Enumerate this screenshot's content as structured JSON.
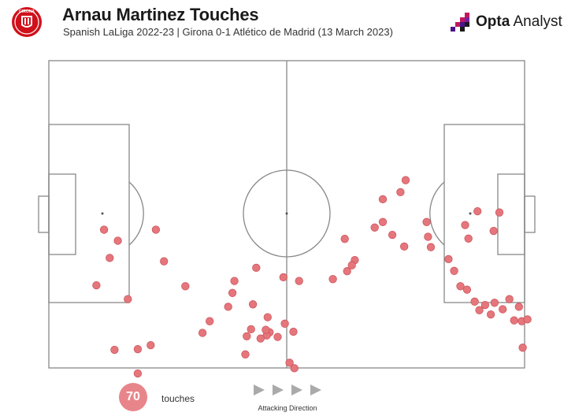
{
  "header": {
    "title": "Arnau Martinez Touches",
    "subtitle": "Spanish LaLiga 2022-23 | Girona 0-1 Atlético de Madrid (13 March 2023)",
    "crest_text": "GIRONA",
    "brand_bold": "Opta",
    "brand_regular": " Analyst"
  },
  "footer": {
    "count": "70",
    "count_label": "touches",
    "direction_label": "Attacking Direction"
  },
  "colors": {
    "touch": "#e5767c",
    "touch_stroke": "#c95258",
    "pitch_line": "#888888",
    "crest": "#d0101a",
    "brand_accent": "#c2185b"
  },
  "chart_data": {
    "type": "scatter",
    "xlim": [
      0,
      100
    ],
    "ylim": [
      0,
      100
    ],
    "points": [
      [
        11.6,
        55.0
      ],
      [
        22.5,
        55.0
      ],
      [
        14.5,
        58.6
      ],
      [
        12.8,
        64.2
      ],
      [
        24.2,
        65.3
      ],
      [
        10.0,
        73.1
      ],
      [
        16.6,
        77.6
      ],
      [
        28.7,
        73.4
      ],
      [
        42.9,
        79.3
      ],
      [
        49.3,
        70.5
      ],
      [
        51.4,
        88.2
      ],
      [
        59.7,
        71.1
      ],
      [
        64.3,
        64.9
      ],
      [
        74.7,
        60.5
      ],
      [
        72.2,
        56.7
      ],
      [
        70.2,
        52.5
      ],
      [
        62.7,
        68.5
      ],
      [
        52.6,
        71.7
      ],
      [
        43.6,
        67.4
      ],
      [
        39.0,
        71.7
      ],
      [
        38.6,
        75.6
      ],
      [
        37.7,
        80.1
      ],
      [
        33.8,
        84.8
      ],
      [
        32.3,
        88.6
      ],
      [
        21.4,
        92.6
      ],
      [
        18.7,
        93.9
      ],
      [
        18.7,
        101.8
      ],
      [
        13.8,
        94.1
      ],
      [
        50.6,
        98.3
      ],
      [
        49.6,
        85.6
      ],
      [
        48.1,
        89.9
      ],
      [
        46.4,
        88.4
      ],
      [
        45.8,
        89.4
      ],
      [
        45.6,
        87.6
      ],
      [
        46.0,
        83.5
      ],
      [
        51.6,
        100.1
      ],
      [
        44.5,
        90.4
      ],
      [
        42.5,
        87.4
      ],
      [
        41.3,
        95.6
      ],
      [
        41.6,
        89.7
      ],
      [
        62.2,
        58.0
      ],
      [
        63.7,
        66.6
      ],
      [
        70.2,
        45.1
      ],
      [
        68.5,
        54.3
      ],
      [
        75.0,
        38.9
      ],
      [
        73.9,
        42.8
      ],
      [
        79.7,
        57.3
      ],
      [
        79.4,
        52.5
      ],
      [
        80.3,
        60.7
      ],
      [
        90.1,
        49.0
      ],
      [
        94.7,
        49.4
      ],
      [
        93.5,
        55.4
      ],
      [
        87.5,
        53.5
      ],
      [
        88.2,
        57.9
      ],
      [
        84.0,
        64.6
      ],
      [
        85.2,
        68.4
      ],
      [
        86.5,
        73.4
      ],
      [
        87.9,
        74.5
      ],
      [
        89.5,
        78.4
      ],
      [
        90.5,
        81.2
      ],
      [
        91.7,
        79.5
      ],
      [
        92.9,
        82.6
      ],
      [
        93.7,
        78.8
      ],
      [
        95.4,
        80.9
      ],
      [
        99.6,
        93.4
      ],
      [
        98.8,
        80.1
      ],
      [
        97.8,
        84.5
      ],
      [
        96.8,
        77.6
      ],
      [
        99.4,
        84.8
      ],
      [
        100.6,
        84.2
      ]
    ]
  }
}
